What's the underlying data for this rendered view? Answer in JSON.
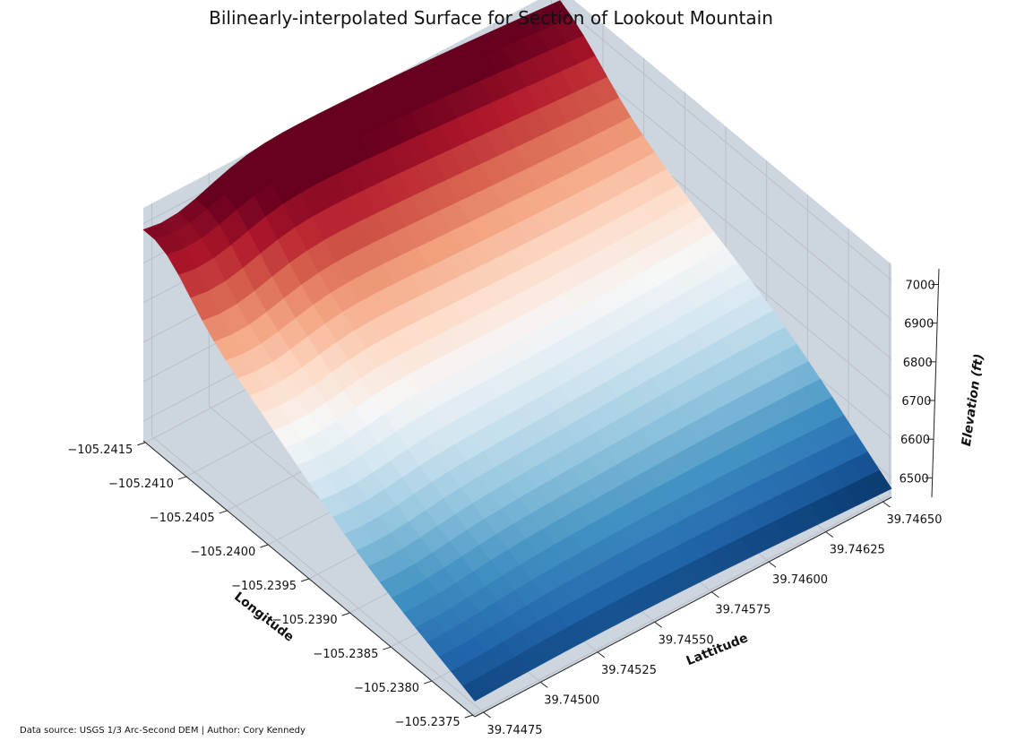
{
  "chart_data": {
    "type": "surface",
    "title": "Bilinearly-interpolated Surface for Section of Lookout Mountain",
    "xlabel": "Longitude",
    "ylabel": "Lattitude",
    "zlabel": "Elevation (ft)",
    "x_ticks": [
      "−105.2415",
      "−105.2410",
      "−105.2405",
      "−105.2400",
      "−105.2395",
      "−105.2390",
      "−105.2385",
      "−105.2380",
      "−105.2375"
    ],
    "y_ticks": [
      "39.74475",
      "39.74500",
      "39.74525",
      "39.74550",
      "39.74575",
      "39.74600",
      "39.74625",
      "39.74650"
    ],
    "z_ticks": [
      "6500",
      "6600",
      "6700",
      "6800",
      "6900",
      "7000"
    ],
    "xlim": [
      -105.2417,
      -105.2374
    ],
    "ylim": [
      39.74468,
      39.74662
    ],
    "zlim": [
      6450,
      7040
    ],
    "colormap": "RdBu",
    "colormap_colors": [
      "#67001f",
      "#b2182b",
      "#d6604d",
      "#f4a582",
      "#fddbc7",
      "#f7f7f7",
      "#d1e5f0",
      "#92c5de",
      "#4393c3",
      "#2166ac",
      "#053061"
    ],
    "pane_color": "#cdd5df",
    "grid": true
  },
  "footnote": "Data source: USGS 1/3 Arc-Second DEM | Author: Cory Kennedy"
}
